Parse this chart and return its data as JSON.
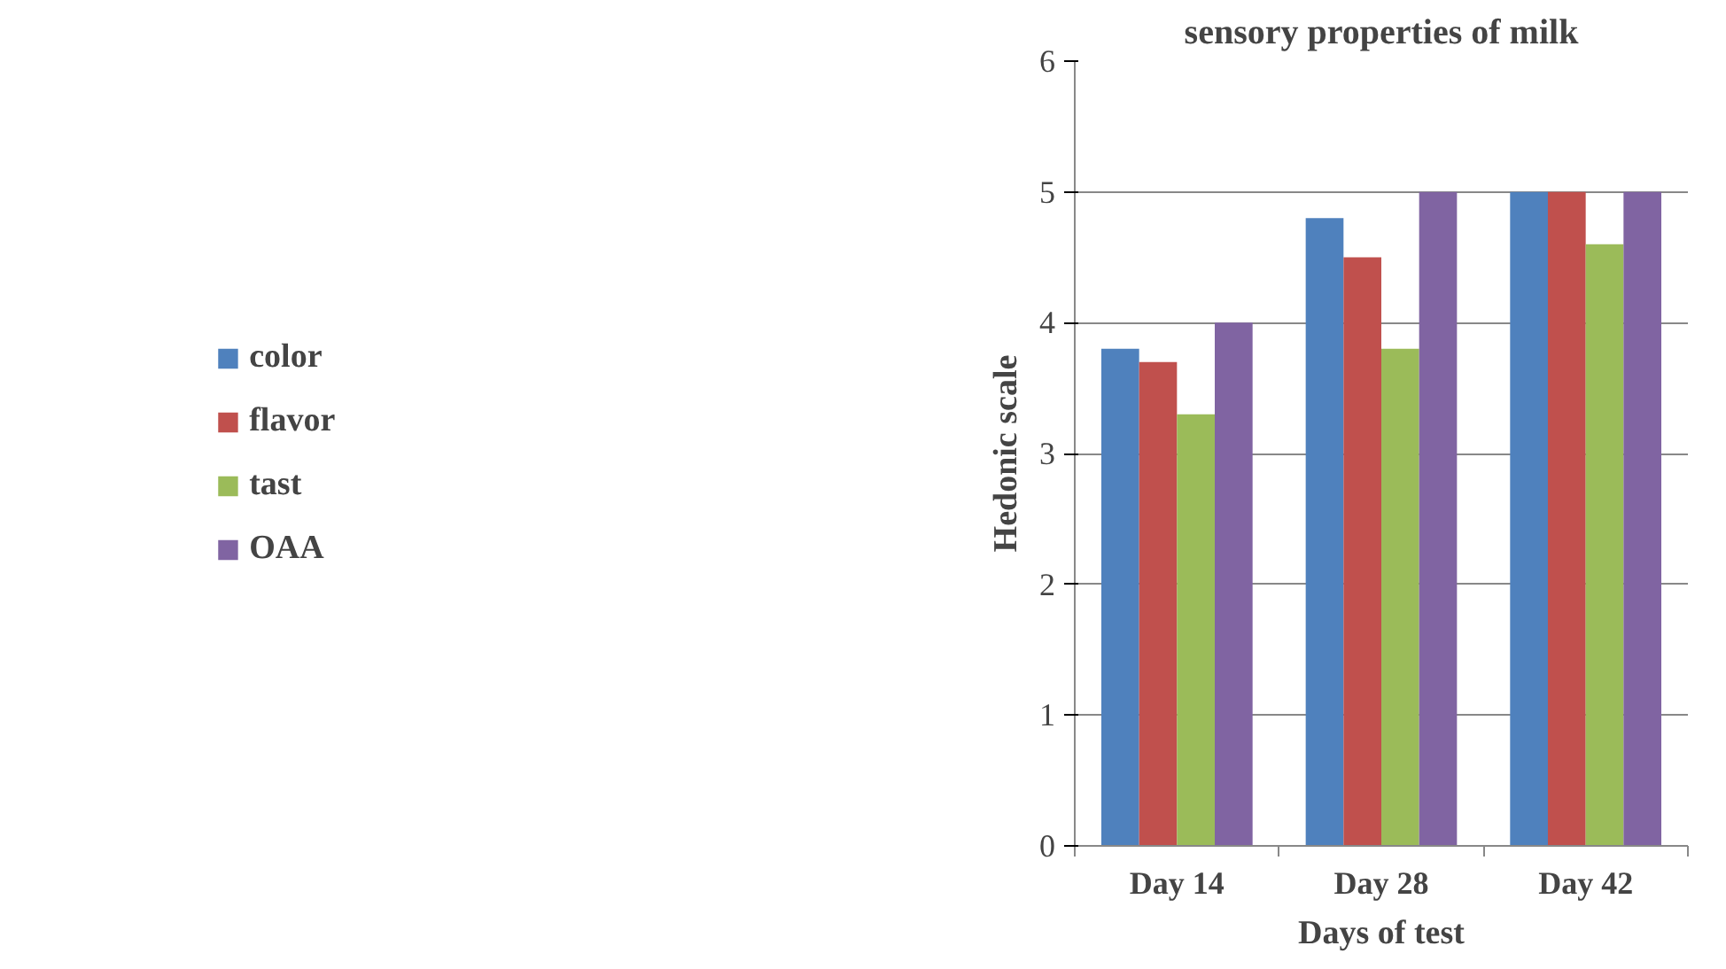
{
  "chart_data": {
    "type": "bar",
    "title": "sensory properties of milk",
    "xlabel": "Days of test",
    "ylabel": "Hedonic scale",
    "categories": [
      "Day 14",
      "Day 28",
      "Day 42"
    ],
    "series": [
      {
        "name": "color",
        "color": "#4f81bd",
        "values": [
          3.8,
          4.8,
          5.0
        ]
      },
      {
        "name": "flavor",
        "color": "#c0504d",
        "values": [
          3.7,
          4.5,
          5.0
        ]
      },
      {
        "name": "tast",
        "color": "#9bbb59",
        "values": [
          3.3,
          3.8,
          4.6
        ]
      },
      {
        "name": "OAA",
        "color": "#8064a2",
        "values": [
          4.0,
          5.0,
          5.0
        ]
      }
    ],
    "ylim": [
      0,
      6
    ],
    "yticks": [
      0,
      1,
      2,
      3,
      4,
      5,
      6
    ],
    "grid": "y",
    "legend": "left"
  }
}
